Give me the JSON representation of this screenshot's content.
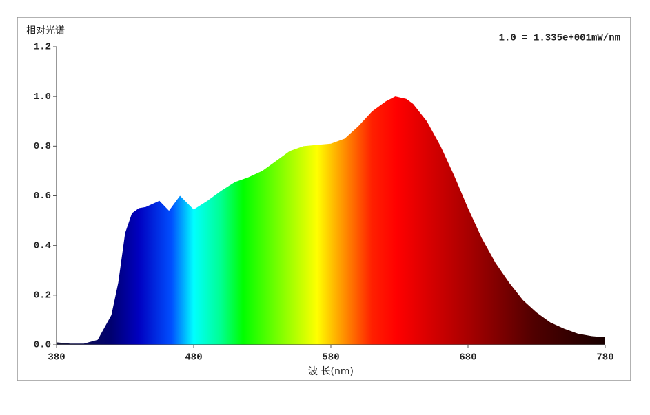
{
  "chart_data": {
    "type": "area",
    "title": "相对光谱",
    "annotation": "1.0 = 1.335e+001mW/nm",
    "x_label": "波 长(nm)",
    "x": [
      380,
      390,
      400,
      410,
      420,
      425,
      430,
      435,
      440,
      445,
      455,
      462,
      470,
      480,
      490,
      500,
      510,
      520,
      530,
      540,
      550,
      560,
      570,
      580,
      590,
      600,
      610,
      620,
      627,
      635,
      640,
      650,
      660,
      670,
      680,
      690,
      700,
      710,
      720,
      730,
      740,
      750,
      760,
      770,
      780
    ],
    "values": [
      0.01,
      0.005,
      0.005,
      0.02,
      0.12,
      0.25,
      0.45,
      0.53,
      0.55,
      0.555,
      0.58,
      0.54,
      0.6,
      0.545,
      0.58,
      0.62,
      0.655,
      0.675,
      0.7,
      0.74,
      0.78,
      0.8,
      0.805,
      0.81,
      0.83,
      0.88,
      0.94,
      0.98,
      1.0,
      0.99,
      0.97,
      0.9,
      0.8,
      0.68,
      0.55,
      0.43,
      0.33,
      0.25,
      0.18,
      0.13,
      0.09,
      0.065,
      0.045,
      0.035,
      0.03
    ],
    "xlim": [
      380,
      780
    ],
    "ylim": [
      0,
      1.2
    ],
    "xticks": [
      380,
      480,
      580,
      680,
      780
    ],
    "yticks": [
      {
        "value": 0,
        "label": "0.0"
      },
      0.2,
      0.4,
      0.6,
      0.8,
      {
        "value": 1,
        "label": "1.0"
      },
      1.2
    ]
  }
}
